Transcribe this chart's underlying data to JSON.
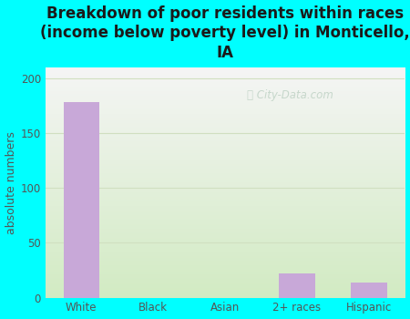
{
  "categories": [
    "White",
    "Black",
    "Asian",
    "2+ races",
    "Hispanic"
  ],
  "values": [
    178,
    0,
    0,
    22,
    14
  ],
  "bar_color": "#c8a8d8",
  "title": "Breakdown of poor residents within races\n(income below poverty level) in Monticello,\nIA",
  "ylabel": "absolute numbers",
  "ylim": [
    0,
    210
  ],
  "yticks": [
    0,
    50,
    100,
    150,
    200
  ],
  "background_color": "#00ffff",
  "plot_bg_top": "#f5f5f5",
  "plot_bg_bottom": "#d8edcc",
  "grid_color": "#d0dfc0",
  "title_fontsize": 12,
  "ylabel_fontsize": 9,
  "tick_fontsize": 8.5,
  "title_color": "#1a1a1a",
  "axis_color": "#555555",
  "watermark_text": "City-Data.com",
  "watermark_color": "#b0c8b8",
  "watermark_alpha": 0.65
}
